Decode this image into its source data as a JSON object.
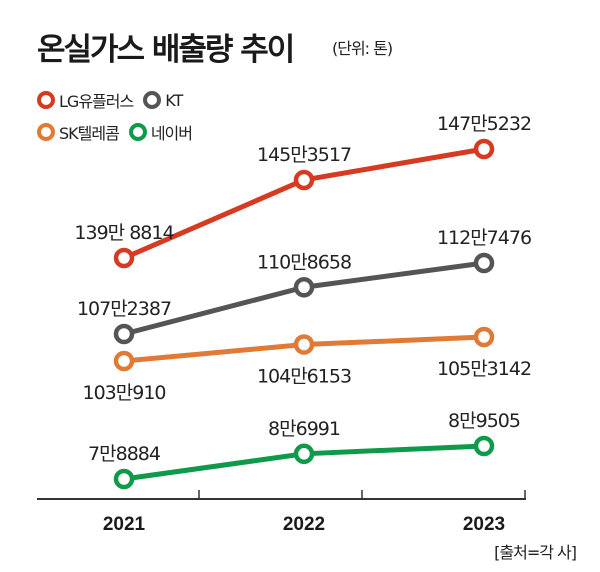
{
  "title": "온실가스 배출량 추이",
  "unit": "(단위: 톤)",
  "source": "[출처=각 사]",
  "legend": [
    {
      "name": "LG유플러스",
      "color": "#d63a22"
    },
    {
      "name": "KT",
      "color": "#555555"
    },
    {
      "name": "SK텔레콤",
      "color": "#e07a35"
    },
    {
      "name": "네이버",
      "color": "#0f9a4a"
    }
  ],
  "chart_data": {
    "type": "line",
    "title": "온실가스 배출량 추이",
    "unit": "(단위: 톤)",
    "xlabel": "",
    "ylabel": "",
    "categories": [
      "2021",
      "2022",
      "2023"
    ],
    "grid": false,
    "legend_position": "top-left",
    "series": [
      {
        "name": "LG유플러스",
        "color": "#d63a22",
        "values": [
          1398814,
          1453517,
          1475232
        ],
        "labels": [
          "139만 8814",
          "145만3517",
          "147만5232"
        ],
        "label_pos": [
          "above",
          "above",
          "above"
        ]
      },
      {
        "name": "KT",
        "color": "#555555",
        "values": [
          1072387,
          1108658,
          1127476
        ],
        "labels": [
          "107만2387",
          "110만8658",
          "112만7476"
        ],
        "label_pos": [
          "above",
          "above",
          "above"
        ]
      },
      {
        "name": "SK텔레콤",
        "color": "#e07a35",
        "values": [
          1030910,
          1046153,
          1053142
        ],
        "labels": [
          "103만910",
          "104만6153",
          "105만3142"
        ],
        "label_pos": [
          "below",
          "below",
          "below"
        ]
      },
      {
        "name": "네이버",
        "color": "#0f9a4a",
        "values": [
          78884,
          86991,
          89505
        ],
        "labels": [
          "7만8884",
          "8만6991",
          "8만9505"
        ],
        "label_pos": [
          "above",
          "above",
          "above"
        ]
      }
    ]
  }
}
